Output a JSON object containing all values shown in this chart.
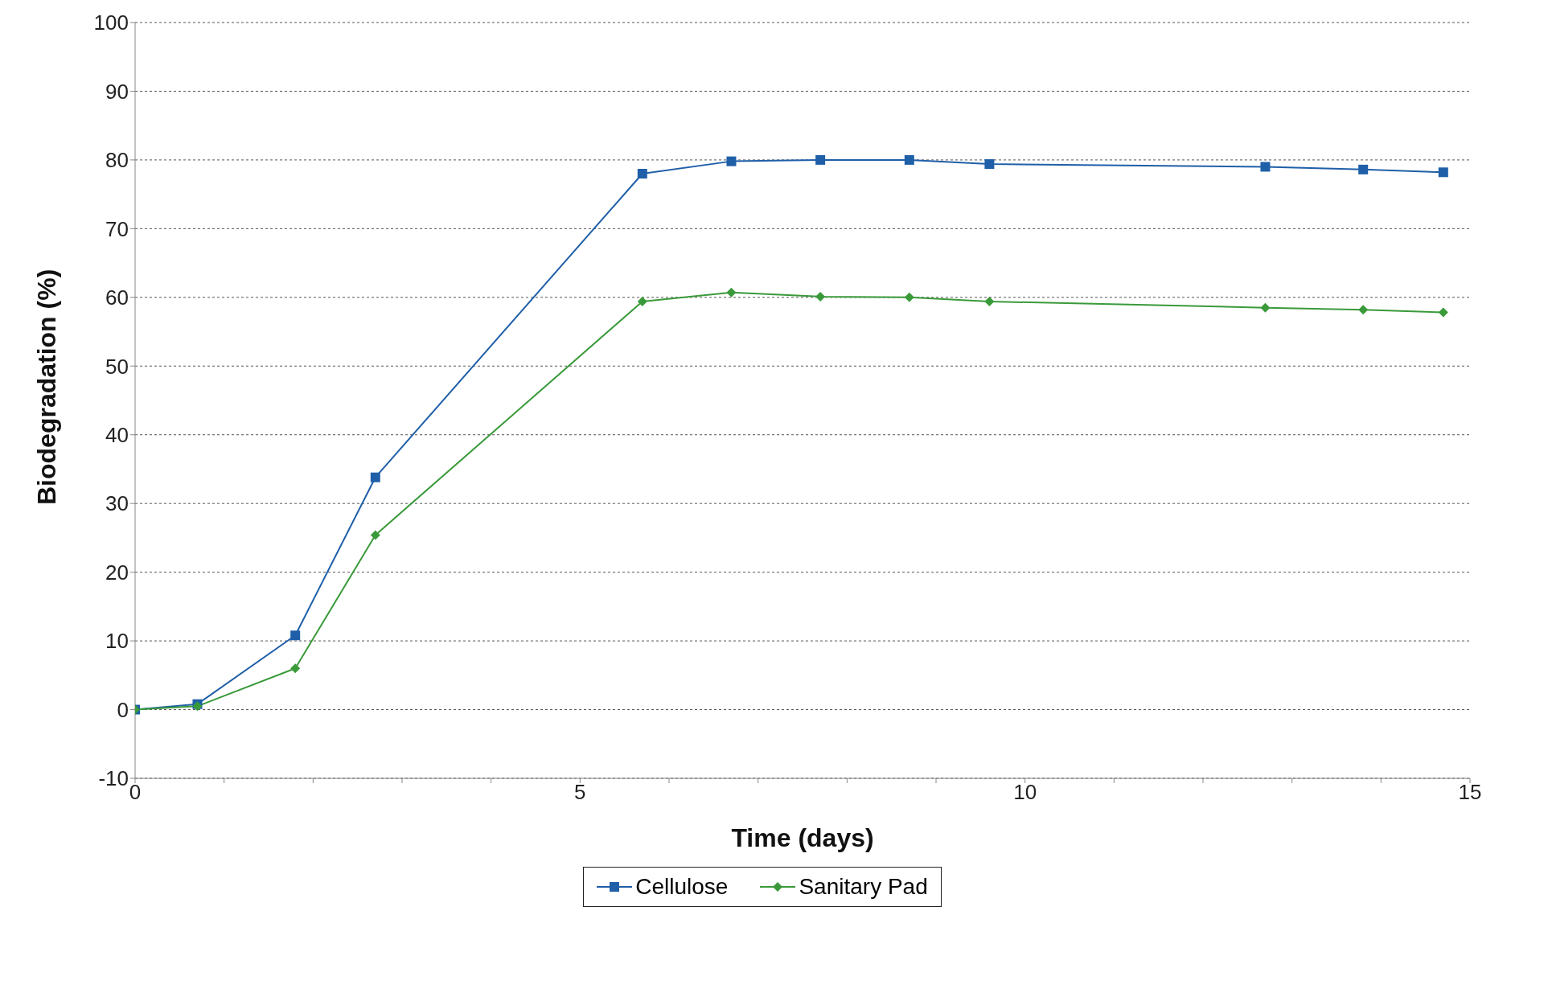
{
  "chart_data": {
    "type": "line",
    "xlabel": "Time (days)",
    "ylabel": "Biodegradation  (%)",
    "x": [
      0,
      0.7,
      1.8,
      2.7,
      5.7,
      6.7,
      7.7,
      8.7,
      9.6,
      12.7,
      13.8,
      14.7
    ],
    "series": [
      {
        "name": "Cellulose",
        "color": "#1f5fa8",
        "marker": "square",
        "values": [
          0,
          0.8,
          10.8,
          33.8,
          78,
          79.8,
          80,
          80,
          79.4,
          79,
          78.6,
          78.2
        ]
      },
      {
        "name": "Sanitary Pad",
        "color": "#3a9a3a",
        "marker": "diamond",
        "values": [
          0,
          0.5,
          6,
          25.4,
          59.4,
          60.7,
          60.1,
          60,
          59.4,
          58.5,
          58.2,
          57.8
        ]
      }
    ],
    "xlim": [
      0,
      15
    ],
    "xticks": [
      0,
      {
        "value": 1,
        "label": null
      },
      {
        "value": 2,
        "label": null
      },
      {
        "value": 3,
        "label": null
      },
      {
        "value": 4,
        "label": null
      },
      5,
      {
        "value": 6,
        "label": null
      },
      {
        "value": 7,
        "label": null
      },
      {
        "value": 8,
        "label": null
      },
      {
        "value": 9,
        "label": null
      },
      10,
      {
        "value": 11,
        "label": null
      },
      {
        "value": 12,
        "label": null
      },
      {
        "value": 13,
        "label": null
      },
      {
        "value": 14,
        "label": null
      },
      15
    ],
    "ylim": [
      -10,
      100
    ],
    "yticks": [
      -10,
      0,
      10,
      20,
      30,
      40,
      50,
      60,
      70,
      80,
      90,
      100
    ],
    "grid": "y",
    "legend": "bottom",
    "line_style": "solid"
  }
}
